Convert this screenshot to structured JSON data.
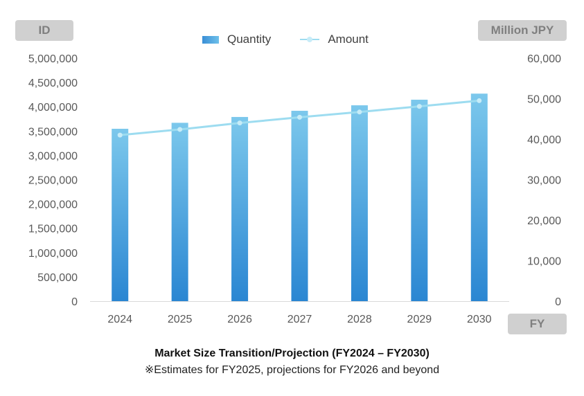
{
  "chart_data": {
    "type": "bar+line",
    "title": "Market Size Transition/Projection (FY2024 – FY2030)",
    "subtitle": "※Estimates for FY2025, projections for FY2026 and beyond",
    "categories": [
      "2024",
      "2025",
      "2026",
      "2027",
      "2028",
      "2029",
      "2030"
    ],
    "xlabel": "FY",
    "ylabel_left": "ID",
    "ylabel_right": "Million JPY",
    "ylim_left": [
      0,
      5000000
    ],
    "ylim_right": [
      0,
      60000
    ],
    "yticks_left": [
      "0",
      "500,000",
      "1,000,000",
      "1,500,000",
      "2,000,000",
      "2,500,000",
      "3,000,000",
      "3,500,000",
      "4,000,000",
      "4,500,000",
      "5,000,000"
    ],
    "yticks_right": [
      "0",
      "10,000",
      "20,000",
      "30,000",
      "40,000",
      "50,000",
      "60,000"
    ],
    "legend_position": "top",
    "grid": false,
    "series": [
      {
        "name": "Quantity",
        "type": "bar",
        "axis": "left",
        "color": "#4aa3e0",
        "values": [
          3547000,
          3670000,
          3790000,
          3917000,
          4030000,
          4145000,
          4270000
        ]
      },
      {
        "name": "Amount",
        "type": "line",
        "axis": "right",
        "color": "#9ddcf0",
        "values": [
          41000,
          42400,
          44000,
          45400,
          46700,
          48100,
          49500
        ]
      }
    ]
  }
}
